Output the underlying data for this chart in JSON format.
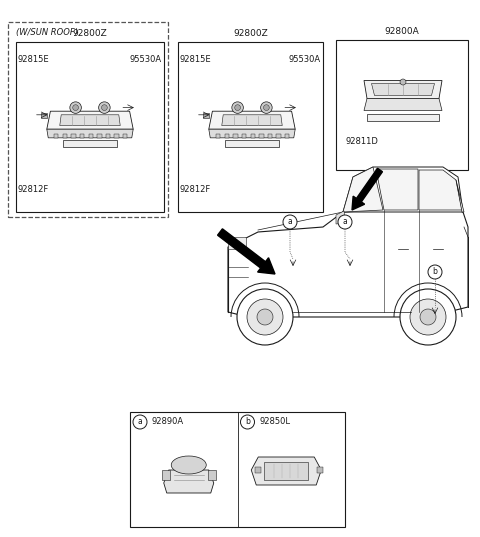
{
  "background_color": "#ffffff",
  "line_color": "#1a1a1a",
  "gray_fill": "#e8e8e8",
  "dark_fill": "#888888",
  "labels": {
    "wsunroof": "(W/SUN ROOF)",
    "92800Z_l": "92800Z",
    "92800Z_r": "92800Z",
    "92800A": "92800A",
    "92815E_l": "92815E",
    "95530A_l": "95530A",
    "92812F_l": "92812F",
    "92815E_r": "92815E",
    "95530A_r": "95530A",
    "92812F_r": "92812F",
    "92811D": "92811D",
    "92890A": "92890A",
    "92850L": "92850L"
  },
  "fs_main": 7.5,
  "fs_small": 6.5,
  "fs_tiny": 6.0
}
